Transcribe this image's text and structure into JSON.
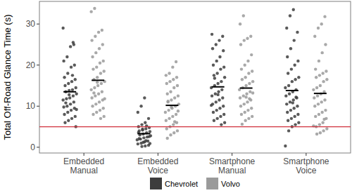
{
  "chart_data": {
    "type": "strip",
    "y_label": "Total Off-Road Glance Time (s)",
    "categories": [
      "Embedded Manual",
      "Embedded Voice",
      "Smartphone Manual",
      "Smartphone Voice"
    ],
    "ylim": [
      -1.4,
      35.5
    ],
    "yticks": [
      0,
      10,
      20,
      30
    ],
    "grid": false,
    "legend": "bottom",
    "hline": 5,
    "series": [
      {
        "name": "Chevrolet",
        "color": "#3d3d3d",
        "means": [
          13.5,
          3.3,
          14.7,
          13.8
        ],
        "values": [
          [
            29,
            25,
            24.5,
            22,
            21,
            20,
            19.5,
            18,
            17,
            16.5,
            16,
            15.5,
            15,
            14.5,
            14,
            13.8,
            13.5,
            13,
            12.5,
            12,
            11.8,
            11.5,
            11,
            10.5,
            10,
            9.8,
            9.5,
            9,
            8.5,
            8,
            7.5,
            7,
            6.5,
            6,
            5,
            17.5,
            12.8,
            10.8,
            9.2,
            25.5
          ],
          [
            12,
            10,
            8.5,
            7,
            6,
            5.5,
            5,
            4.8,
            4.5,
            4.2,
            4,
            3.8,
            3.5,
            3.2,
            3,
            2.8,
            2.5,
            2.3,
            2,
            1.8,
            1.5,
            1.3,
            1,
            0.8,
            0.5,
            0.3,
            0.2,
            3.6,
            2.6,
            1.6,
            4.4,
            2.1,
            0.9,
            5.2,
            1.2
          ],
          [
            27.5,
            27,
            26,
            25,
            24,
            23.5,
            22,
            21,
            20,
            19.5,
            19,
            18,
            17.5,
            17,
            16,
            15.5,
            15,
            14.5,
            14,
            13.5,
            13,
            12.5,
            12,
            11.5,
            11,
            10.5,
            10,
            9.5,
            9,
            8.5,
            8,
            7.5,
            7,
            6.5,
            6,
            5.5,
            12.8,
            16.8,
            10.2
          ],
          [
            33.5,
            32,
            29,
            28,
            26,
            24,
            22,
            21,
            20,
            19,
            18,
            17,
            16.5,
            16,
            15,
            14.5,
            14,
            13.5,
            13,
            12.5,
            12,
            11.5,
            11,
            10.5,
            10,
            9.5,
            9,
            8.5,
            8,
            7.5,
            7,
            6.5,
            6,
            5.5,
            5,
            4,
            0.3,
            12.2,
            10.8
          ]
        ]
      },
      {
        "name": "Volvo",
        "color": "#9a9a9a",
        "means": [
          16.3,
          10.2,
          14.4,
          13.1
        ],
        "values": [
          [
            33.8,
            33,
            28.5,
            28,
            27,
            26,
            25,
            24,
            23,
            22,
            21,
            20.5,
            19.5,
            19,
            18.5,
            18,
            17,
            16.5,
            16,
            15.5,
            15,
            14.5,
            14,
            13.5,
            13,
            12.5,
            12,
            11.5,
            11,
            10.5,
            10,
            9.5,
            9,
            8.5,
            8,
            7.5,
            7,
            15.8,
            13.2,
            11.8
          ],
          [
            20.8,
            19.5,
            18,
            17.5,
            17,
            16.5,
            16,
            15.5,
            15,
            14.5,
            13.5,
            13,
            12.5,
            12,
            11.5,
            11,
            10.5,
            10,
            9.5,
            9,
            8.5,
            8,
            7.5,
            7,
            6.5,
            6,
            5.5,
            5,
            4.5,
            4,
            3.5,
            3,
            2.2,
            8.8,
            6.2,
            9.8,
            11.2
          ],
          [
            32,
            30,
            27,
            26.5,
            26,
            25,
            22.5,
            21,
            20,
            19,
            18.5,
            18,
            17,
            16.5,
            16,
            15.5,
            15,
            14.5,
            14,
            13.5,
            13,
            12.5,
            12,
            11.5,
            11,
            10.5,
            10,
            9.5,
            9,
            8.5,
            8,
            7.5,
            7,
            6.5,
            5.6,
            13.2,
            11.8,
            12.2
          ],
          [
            31.8,
            30,
            29,
            27,
            25,
            23,
            21,
            19,
            18.5,
            18,
            17.5,
            17,
            16.5,
            16,
            15,
            14.5,
            14,
            13.5,
            13,
            12.5,
            12,
            11.5,
            11,
            10.5,
            10,
            9,
            8.5,
            8,
            7.5,
            7,
            6,
            5.5,
            5,
            4.5,
            4,
            3.5,
            3.2,
            5.2,
            6.8
          ]
        ]
      }
    ]
  }
}
